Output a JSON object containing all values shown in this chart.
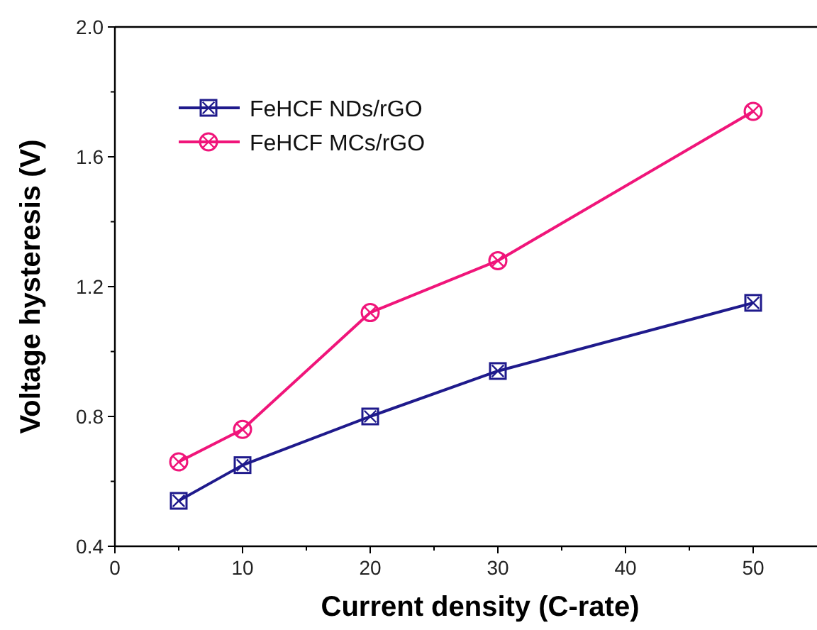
{
  "chart_data": {
    "type": "line",
    "xlabel": "Current density (C-rate)",
    "ylabel": "Voltage hysteresis (V)",
    "x": [
      5,
      10,
      20,
      30,
      50
    ],
    "series": [
      {
        "name": "FeHCF NDs/rGO",
        "color": "#1f1a8c",
        "values": [
          0.54,
          0.65,
          0.8,
          0.94,
          1.15
        ],
        "marker": "square"
      },
      {
        "name": "FeHCF MCs/rGO",
        "color": "#f0157a",
        "values": [
          0.66,
          0.76,
          1.12,
          1.28,
          1.74
        ],
        "marker": "circle"
      }
    ],
    "xlim": [
      0,
      55
    ],
    "xticks": [
      0,
      {
        "value": 5,
        "label": null
      },
      10,
      {
        "value": 15,
        "label": null
      },
      20,
      {
        "value": 25,
        "label": null
      },
      30,
      {
        "value": 35,
        "label": null
      },
      40,
      {
        "value": 45,
        "label": null
      },
      50
    ],
    "ylim": [
      0.4,
      2.0
    ],
    "yticks": [
      {
        "value": 0.4,
        "label": "0.4"
      },
      {
        "value": 0.6,
        "label": null
      },
      {
        "value": 0.8,
        "label": "0.8"
      },
      {
        "value": 1.0,
        "label": null
      },
      {
        "value": 1.2,
        "label": "1.2"
      },
      {
        "value": 1.4,
        "label": null
      },
      {
        "value": 1.6,
        "label": "1.6"
      },
      {
        "value": 1.8,
        "label": null
      },
      {
        "value": 2.0,
        "label": "2.0"
      }
    ],
    "legend": "top left",
    "grid": false,
    "line_style": "solid"
  }
}
